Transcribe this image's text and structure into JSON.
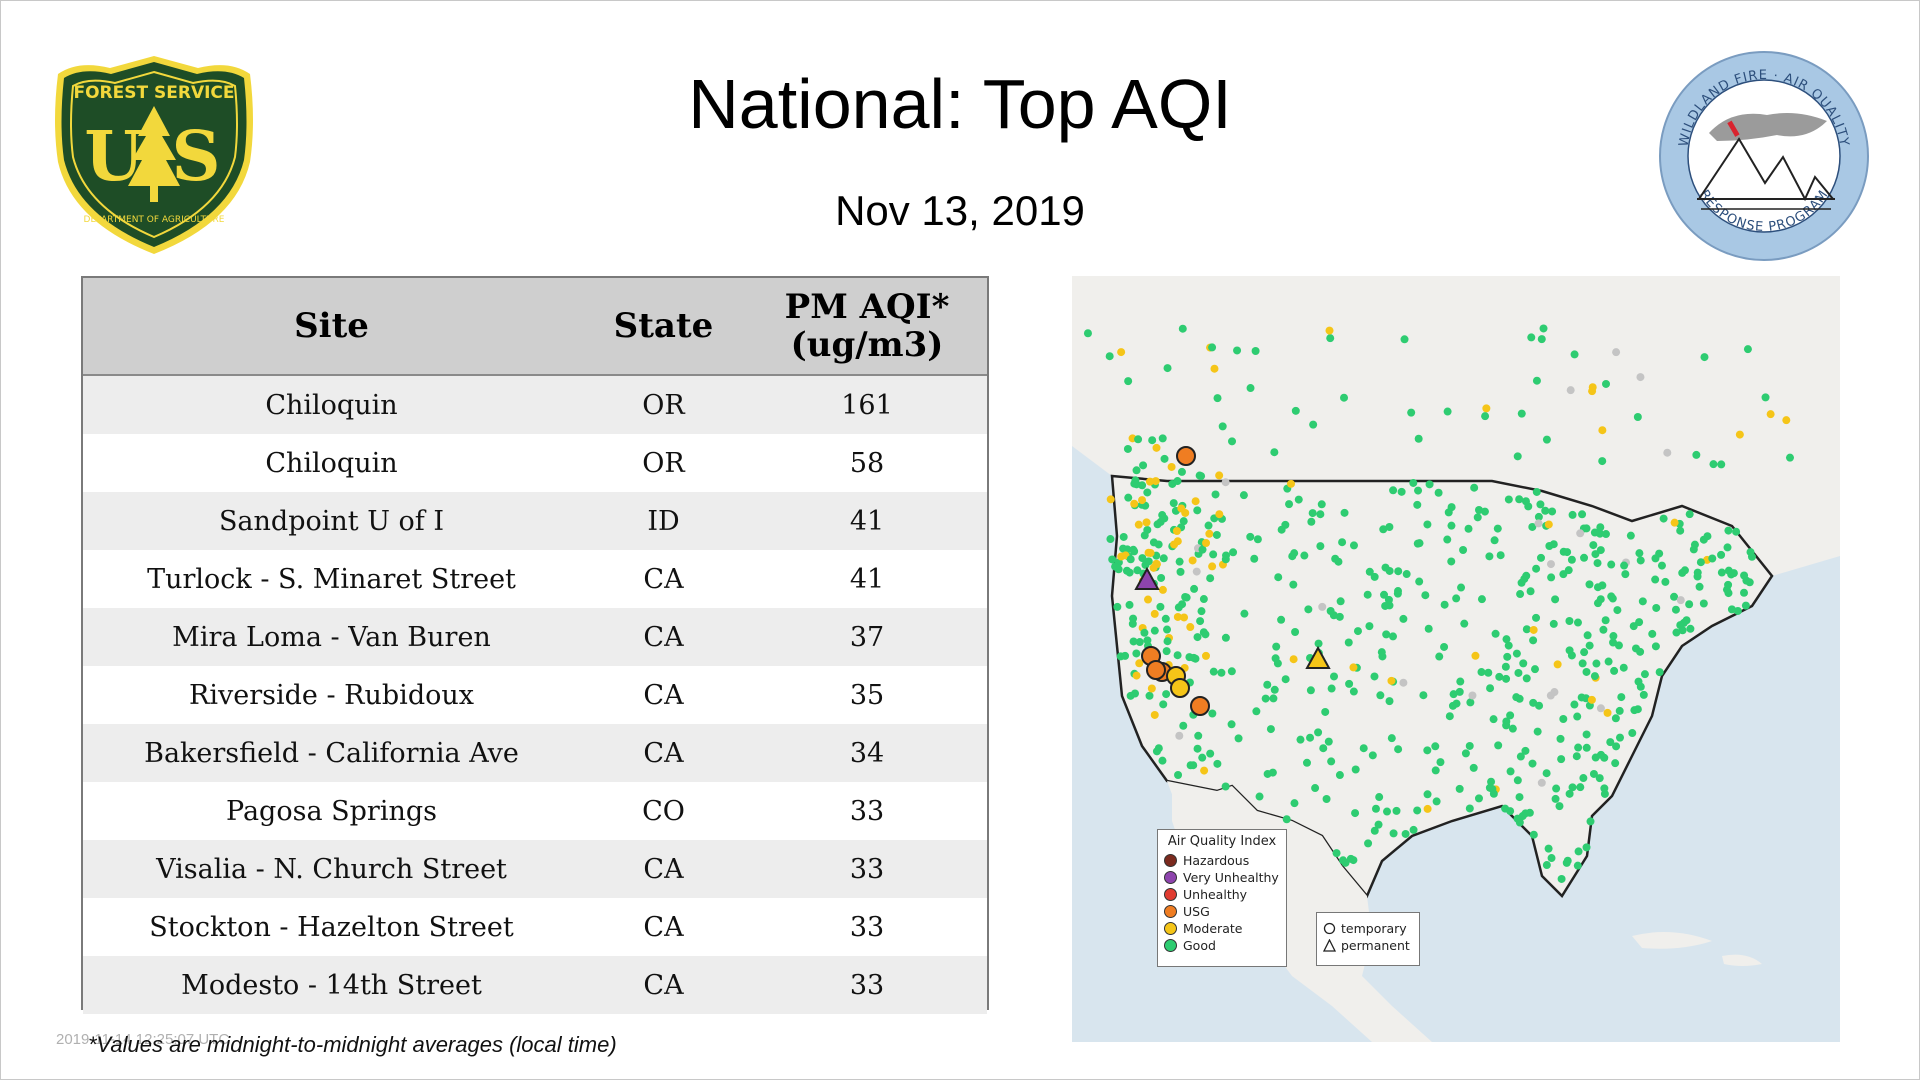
{
  "slide": {
    "title": "National: Top AQI",
    "date": "Nov 13, 2019",
    "footnote": "*Values are midnight-to-midnight averages (local time)",
    "timestamp": "2019-11-14 12:25:07 UTC"
  },
  "logos": {
    "left": {
      "top_text": "FOREST SERVICE",
      "letters": "U S",
      "bottom_text": "DEPARTMENT OF AGRICULTURE",
      "colors": {
        "shield": "#1e4d26",
        "gold": "#f2d83c"
      }
    },
    "right": {
      "top_text": "WILDLAND FIRE · AIR QUALITY",
      "bottom_text": "RESPONSE PROGRAM",
      "colors": {
        "ring": "#a9c8e4",
        "text": "#2d4f7c"
      }
    }
  },
  "table": {
    "headers": {
      "site": "Site",
      "state": "State",
      "aqi_line1": "PM AQI*",
      "aqi_line2": "(ug/m3)"
    },
    "rows": [
      {
        "site": "Chiloquin",
        "state": "OR",
        "aqi": "161"
      },
      {
        "site": "Chiloquin",
        "state": "OR",
        "aqi": "58"
      },
      {
        "site": "Sandpoint U of I",
        "state": "ID",
        "aqi": "41"
      },
      {
        "site": "Turlock - S. Minaret Street",
        "state": "CA",
        "aqi": "41"
      },
      {
        "site": "Mira Loma - Van Buren",
        "state": "CA",
        "aqi": "37"
      },
      {
        "site": "Riverside - Rubidoux",
        "state": "CA",
        "aqi": "35"
      },
      {
        "site": "Bakersfield - California Ave",
        "state": "CA",
        "aqi": "34"
      },
      {
        "site": "Pagosa Springs",
        "state": "CO",
        "aqi": "33"
      },
      {
        "site": "Visalia - N. Church Street",
        "state": "CA",
        "aqi": "33"
      },
      {
        "site": "Stockton - Hazelton Street",
        "state": "CA",
        "aqi": "33"
      },
      {
        "site": "Modesto - 14th Street",
        "state": "CA",
        "aqi": "33"
      }
    ]
  },
  "map": {
    "legend_title": "Air Quality Index",
    "categories": [
      {
        "label": "Hazardous",
        "color": "#7b2a1e"
      },
      {
        "label": "Very Unhealthy",
        "color": "#8e44ad"
      },
      {
        "label": "Unhealthy",
        "color": "#e03c31"
      },
      {
        "label": "USG",
        "color": "#ef7d22"
      },
      {
        "label": "Moderate",
        "color": "#f5c518"
      },
      {
        "label": "Good",
        "color": "#2ecc71"
      }
    ],
    "shape_legend": {
      "temporary": "temporary",
      "permanent": "permanent"
    },
    "colors": {
      "water": "#d8e5ee",
      "land": "#f0efec",
      "border": "#222222",
      "no_data": "#c4c4c4"
    }
  }
}
